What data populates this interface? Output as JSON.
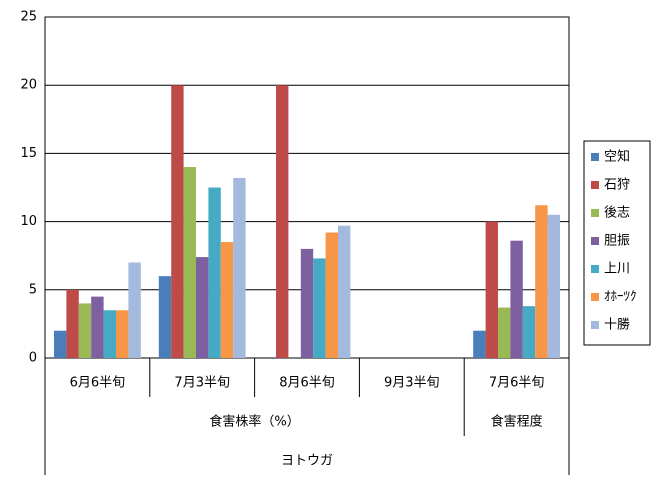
{
  "chart_data": {
    "type": "bar",
    "categories": [
      "6月6半旬",
      "7月3半旬",
      "8月6半旬",
      "9月3半旬",
      "7月6半旬"
    ],
    "category_groups": [
      {
        "label": "食害株率（%）",
        "count": 4
      },
      {
        "label": "食害程度",
        "count": 1
      }
    ],
    "super_group": "ヨトウガ",
    "series": [
      {
        "name": "空知",
        "color": "#4a7ebb",
        "values": [
          2,
          6,
          null,
          null,
          2
        ]
      },
      {
        "name": "石狩",
        "color": "#be4b48",
        "values": [
          5,
          20,
          20,
          null,
          10
        ]
      },
      {
        "name": "後志",
        "color": "#98b954",
        "values": [
          4,
          14,
          null,
          null,
          3.7
        ]
      },
      {
        "name": "胆振",
        "color": "#7d60a0",
        "values": [
          4.5,
          7.4,
          8,
          null,
          8.6
        ]
      },
      {
        "name": "上川",
        "color": "#46aac5",
        "values": [
          3.5,
          12.5,
          7.3,
          null,
          3.8
        ]
      },
      {
        "name": "ｵﾎｰﾂｸ",
        "color": "#f79646",
        "values": [
          3.5,
          8.5,
          9.2,
          null,
          11.2
        ]
      },
      {
        "name": "十勝",
        "color": "#a3b9de",
        "values": [
          7,
          13.2,
          9.7,
          null,
          10.5
        ]
      }
    ],
    "ylim": [
      0,
      25
    ],
    "yticks": [
      0,
      5,
      10,
      15,
      20,
      25
    ],
    "grid": true,
    "legend": "right"
  }
}
